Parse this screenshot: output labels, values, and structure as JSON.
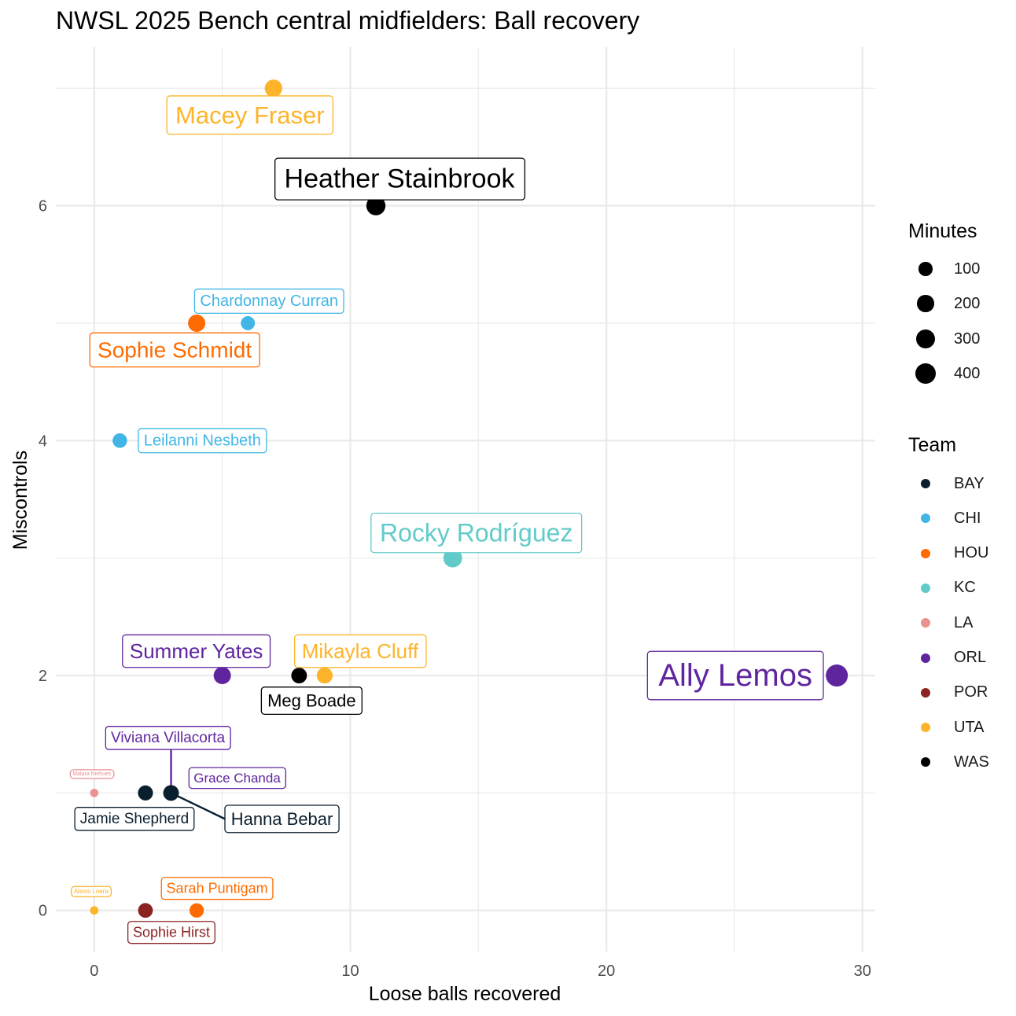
{
  "chart_data": {
    "type": "scatter",
    "title": "NWSL 2025 Bench central midfielders: Ball recovery",
    "xlabel": "Loose balls recovered",
    "ylabel": "Miscontrols",
    "xlim": [
      -1.5,
      30.5
    ],
    "ylim": [
      -0.35,
      7.35
    ],
    "x_ticks": [
      0,
      10,
      20,
      30
    ],
    "y_ticks": [
      0,
      2,
      4,
      6
    ],
    "grid": true,
    "legend_position": "right",
    "size_legend": {
      "title": "Minutes",
      "entries": [
        {
          "label": "100",
          "value": 100
        },
        {
          "label": "200",
          "value": 200
        },
        {
          "label": "300",
          "value": 300
        },
        {
          "label": "400",
          "value": 400
        }
      ]
    },
    "color_legend": {
      "title": "Team",
      "entries": [
        {
          "label": "BAY",
          "color": "#0a1f2e"
        },
        {
          "label": "CHI",
          "color": "#41b6e6"
        },
        {
          "label": "HOU",
          "color": "#ff6b00"
        },
        {
          "label": "KC",
          "color": "#62cbc9"
        },
        {
          "label": "LA",
          "color": "#ea9291"
        },
        {
          "label": "ORL",
          "color": "#5f259f"
        },
        {
          "label": "POR",
          "color": "#8b2323"
        },
        {
          "label": "UTA",
          "color": "#fdb42a"
        },
        {
          "label": "WAS",
          "color": "#000000"
        }
      ]
    },
    "points": [
      {
        "name": "Macey Fraser",
        "team": "UTA",
        "x": 7,
        "y": 7,
        "minutes": 230
      },
      {
        "name": "Heather Stainbrook",
        "team": "WAS",
        "x": 11,
        "y": 6,
        "minutes": 300
      },
      {
        "name": "Chardonnay Curran",
        "team": "CHI",
        "x": 6,
        "y": 5,
        "minutes": 110
      },
      {
        "name": "Sophie Schmidt",
        "team": "HOU",
        "x": 4,
        "y": 5,
        "minutes": 220
      },
      {
        "name": "Leilanni Nesbeth",
        "team": "CHI",
        "x": 1,
        "y": 4,
        "minutes": 125
      },
      {
        "name": "Rocky Rodríguez",
        "team": "KC",
        "x": 14,
        "y": 3,
        "minutes": 280
      },
      {
        "name": "Summer Yates",
        "team": "ORL",
        "x": 5,
        "y": 2,
        "minutes": 220
      },
      {
        "name": "Mikayla Cluff",
        "team": "UTA",
        "x": 9,
        "y": 2,
        "minutes": 170
      },
      {
        "name": "Meg Boade",
        "team": "WAS",
        "x": 8,
        "y": 2,
        "minutes": 160
      },
      {
        "name": "Ally Lemos",
        "team": "ORL",
        "x": 29,
        "y": 2,
        "minutes": 450
      },
      {
        "name": "Viviana Villacorta",
        "team": "ORL",
        "x": 3,
        "y": 1,
        "minutes": 150
      },
      {
        "name": "Grace Chanda",
        "team": "ORL",
        "x": 3,
        "y": 1,
        "minutes": 120
      },
      {
        "name": "Hanna Bebar",
        "team": "BAY",
        "x": 3,
        "y": 1,
        "minutes": 160
      },
      {
        "name": "Jamie Shepherd",
        "team": "BAY",
        "x": 2,
        "y": 1,
        "minutes": 140
      },
      {
        "name": "Malara Niehues",
        "team": "LA",
        "x": 0,
        "y": 1,
        "minutes": 8
      },
      {
        "name": "Alexis Loera",
        "team": "UTA",
        "x": 0,
        "y": 0,
        "minutes": 8
      },
      {
        "name": "Sarah Puntigam",
        "team": "HOU",
        "x": 4,
        "y": 0,
        "minutes": 120
      },
      {
        "name": "Sophie Hirst",
        "team": "POR",
        "x": 2,
        "y": 0,
        "minutes": 130
      }
    ]
  }
}
